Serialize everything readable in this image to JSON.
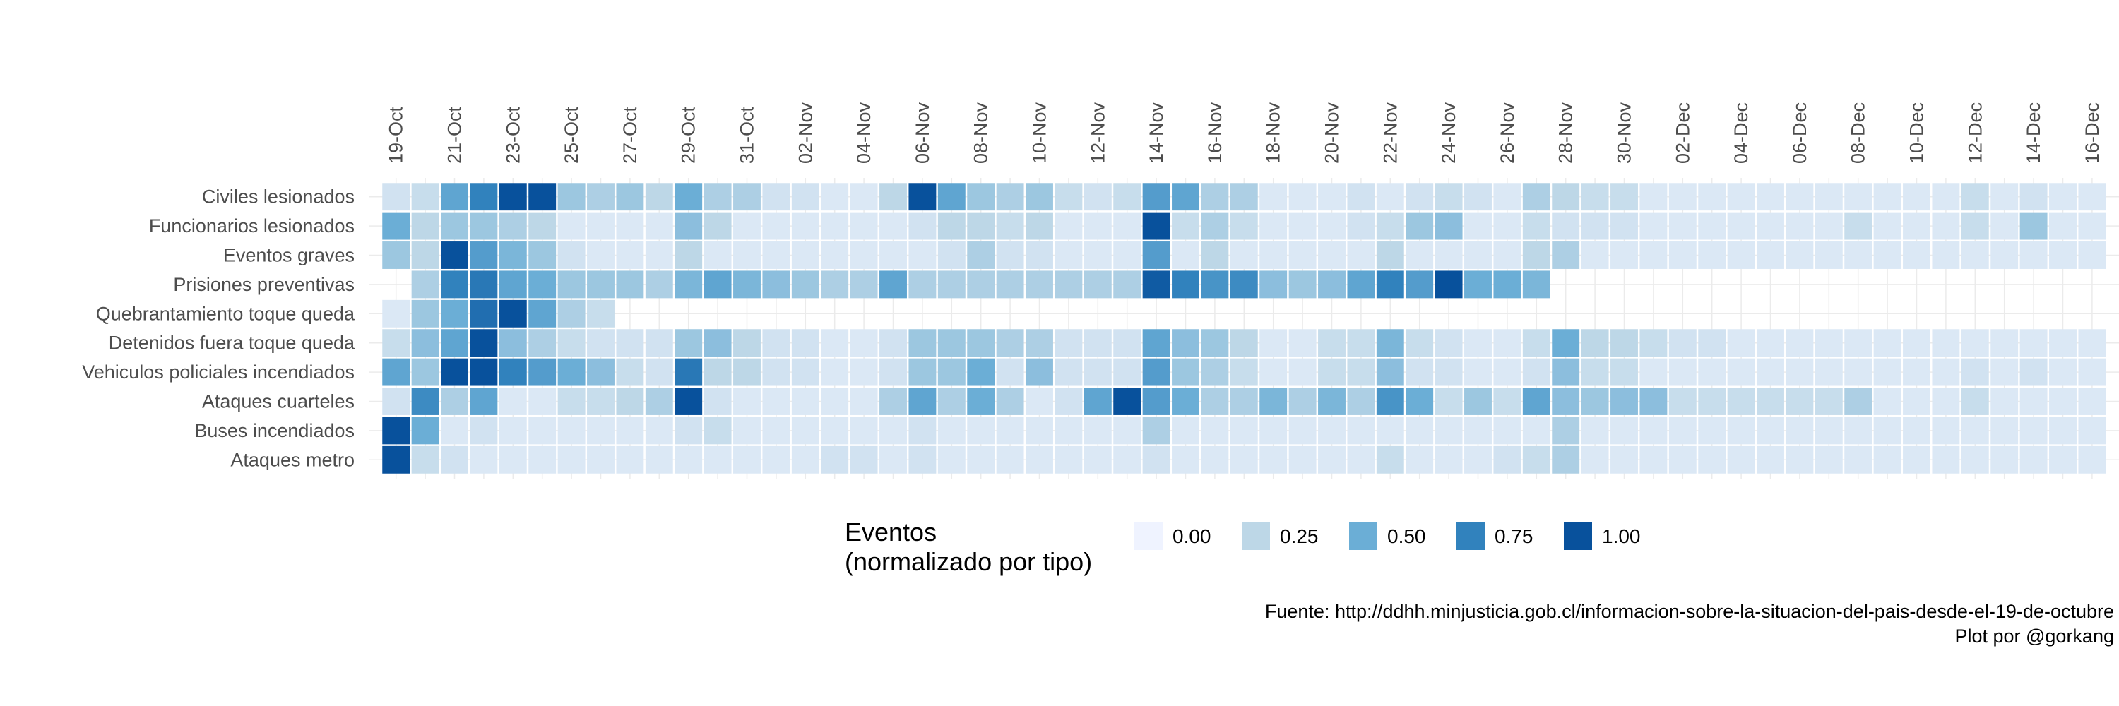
{
  "chart_data": {
    "type": "heatmap",
    "x": [
      "19-Oct",
      "20-Oct",
      "21-Oct",
      "22-Oct",
      "23-Oct",
      "24-Oct",
      "25-Oct",
      "26-Oct",
      "27-Oct",
      "28-Oct",
      "29-Oct",
      "30-Oct",
      "31-Oct",
      "01-Nov",
      "02-Nov",
      "03-Nov",
      "04-Nov",
      "05-Nov",
      "06-Nov",
      "07-Nov",
      "08-Nov",
      "09-Nov",
      "10-Nov",
      "11-Nov",
      "12-Nov",
      "13-Nov",
      "14-Nov",
      "15-Nov",
      "16-Nov",
      "17-Nov",
      "18-Nov",
      "19-Nov",
      "20-Nov",
      "21-Nov",
      "22-Nov",
      "23-Nov",
      "24-Nov",
      "25-Nov",
      "26-Nov",
      "27-Nov",
      "28-Nov",
      "29-Nov",
      "30-Nov",
      "01-Dec",
      "02-Dec",
      "03-Dec",
      "04-Dec",
      "05-Dec",
      "06-Dec",
      "07-Dec",
      "08-Dec",
      "09-Dec",
      "10-Dec",
      "11-Dec",
      "12-Dec",
      "13-Dec",
      "14-Dec",
      "15-Dec",
      "16-Dec"
    ],
    "x_tick_labels": [
      "19-Oct",
      "21-Oct",
      "23-Oct",
      "25-Oct",
      "27-Oct",
      "29-Oct",
      "31-Oct",
      "02-Nov",
      "04-Nov",
      "06-Nov",
      "08-Nov",
      "10-Nov",
      "12-Nov",
      "14-Nov",
      "16-Nov",
      "18-Nov",
      "20-Nov",
      "22-Nov",
      "24-Nov",
      "26-Nov",
      "28-Nov",
      "30-Nov",
      "02-Dec",
      "04-Dec",
      "06-Dec",
      "08-Dec",
      "10-Dec",
      "12-Dec",
      "14-Dec",
      "16-Dec"
    ],
    "categories": [
      "Civiles lesionados",
      "Funcionarios lesionados",
      "Eventos graves",
      "Prisiones preventivas",
      "Quebrantamiento toque queda",
      "Detenidos fuera toque queda",
      "Vehiculos policiales incendiados",
      "Ataques cuarteles",
      "Buses incendiados",
      "Ataques metro"
    ],
    "rows": [
      {
        "name": "Civiles lesionados",
        "values": [
          0.15,
          0.2,
          0.55,
          0.75,
          1.0,
          1.0,
          0.35,
          0.3,
          0.35,
          0.25,
          0.5,
          0.3,
          0.3,
          0.15,
          0.15,
          0.1,
          0.1,
          0.25,
          1.0,
          0.55,
          0.35,
          0.3,
          0.35,
          0.2,
          0.15,
          0.2,
          0.6,
          0.55,
          0.3,
          0.3,
          0.1,
          0.1,
          0.1,
          0.15,
          0.1,
          0.15,
          0.2,
          0.15,
          0.1,
          0.3,
          0.25,
          0.2,
          0.2,
          0.1,
          0.1,
          0.1,
          0.1,
          0.1,
          0.1,
          0.1,
          0.1,
          0.1,
          0.1,
          0.1,
          0.2,
          0.1,
          0.15,
          0.1,
          0.1
        ]
      },
      {
        "name": "Funcionarios lesionados",
        "values": [
          0.5,
          0.25,
          0.35,
          0.35,
          0.3,
          0.25,
          0.1,
          0.1,
          0.1,
          0.1,
          0.4,
          0.25,
          0.1,
          0.1,
          0.1,
          0.1,
          0.1,
          0.1,
          0.15,
          0.25,
          0.25,
          0.2,
          0.25,
          0.1,
          0.1,
          0.1,
          1.0,
          0.2,
          0.3,
          0.2,
          0.1,
          0.1,
          0.1,
          0.15,
          0.2,
          0.35,
          0.4,
          0.1,
          0.1,
          0.2,
          0.15,
          0.15,
          0.15,
          0.1,
          0.1,
          0.1,
          0.1,
          0.1,
          0.1,
          0.1,
          0.2,
          0.1,
          0.1,
          0.1,
          0.2,
          0.1,
          0.35,
          0.1,
          0.1
        ]
      },
      {
        "name": "Eventos graves",
        "values": [
          0.35,
          0.25,
          1.0,
          0.6,
          0.45,
          0.35,
          0.15,
          0.1,
          0.1,
          0.1,
          0.25,
          0.1,
          0.1,
          0.1,
          0.1,
          0.1,
          0.1,
          0.1,
          0.1,
          0.15,
          0.3,
          0.15,
          0.15,
          0.1,
          0.1,
          0.1,
          0.6,
          0.1,
          0.25,
          0.1,
          0.1,
          0.1,
          0.1,
          0.1,
          0.25,
          0.1,
          0.1,
          0.1,
          0.1,
          0.25,
          0.3,
          0.1,
          0.1,
          0.1,
          0.1,
          0.1,
          0.1,
          0.1,
          0.1,
          0.1,
          0.1,
          0.1,
          0.1,
          0.1,
          0.1,
          0.1,
          0.1,
          0.1,
          0.1
        ]
      },
      {
        "name": "Prisiones preventivas",
        "values": [
          null,
          0.3,
          0.75,
          0.8,
          0.55,
          0.5,
          0.35,
          0.35,
          0.35,
          0.3,
          0.45,
          0.55,
          0.45,
          0.4,
          0.35,
          0.3,
          0.3,
          0.55,
          0.3,
          0.3,
          0.3,
          0.3,
          0.3,
          0.3,
          0.3,
          0.3,
          0.95,
          0.75,
          0.65,
          0.7,
          0.4,
          0.35,
          0.4,
          0.55,
          0.75,
          0.6,
          1.0,
          0.5,
          0.5,
          0.45,
          null,
          null,
          null,
          null,
          null,
          null,
          null,
          null,
          null,
          null,
          null,
          null,
          null,
          null,
          null,
          null,
          null,
          null,
          null
        ]
      },
      {
        "name": "Quebrantamiento toque queda",
        "values": [
          0.1,
          0.35,
          0.5,
          0.85,
          1.0,
          0.55,
          0.3,
          0.2,
          null,
          null,
          null,
          null,
          null,
          null,
          null,
          null,
          null,
          null,
          null,
          null,
          null,
          null,
          null,
          null,
          null,
          null,
          null,
          null,
          null,
          null,
          null,
          null,
          null,
          null,
          null,
          null,
          null,
          null,
          null,
          null,
          null,
          null,
          null,
          null,
          null,
          null,
          null,
          null,
          null,
          null,
          null,
          null,
          null,
          null,
          null,
          null,
          null,
          null,
          null
        ]
      },
      {
        "name": "Detenidos fuera toque queda",
        "values": [
          0.2,
          0.4,
          0.55,
          1.0,
          0.4,
          0.3,
          0.2,
          0.15,
          0.15,
          0.15,
          0.35,
          0.4,
          0.25,
          0.15,
          0.15,
          0.1,
          0.1,
          0.15,
          0.35,
          0.35,
          0.35,
          0.3,
          0.3,
          0.15,
          0.15,
          0.15,
          0.55,
          0.4,
          0.35,
          0.25,
          0.1,
          0.1,
          0.2,
          0.2,
          0.45,
          0.2,
          0.15,
          0.1,
          0.1,
          0.2,
          0.5,
          0.25,
          0.25,
          0.2,
          0.15,
          0.15,
          0.1,
          0.1,
          0.1,
          0.1,
          0.1,
          0.1,
          0.1,
          0.1,
          0.1,
          0.1,
          0.1,
          0.1,
          0.1
        ]
      },
      {
        "name": "Vehiculos policiales incendiados",
        "values": [
          0.55,
          0.35,
          1.0,
          1.0,
          0.75,
          0.6,
          0.5,
          0.4,
          0.2,
          0.15,
          0.8,
          0.25,
          0.25,
          0.15,
          0.15,
          0.1,
          0.1,
          0.15,
          0.35,
          0.35,
          0.5,
          0.15,
          0.4,
          0.15,
          0.15,
          0.15,
          0.6,
          0.35,
          0.3,
          0.2,
          0.1,
          0.1,
          0.2,
          0.2,
          0.4,
          0.15,
          0.15,
          0.1,
          0.1,
          0.15,
          0.4,
          0.2,
          0.2,
          0.1,
          0.1,
          0.1,
          0.1,
          0.1,
          0.1,
          0.1,
          0.1,
          0.1,
          0.1,
          0.1,
          0.15,
          0.1,
          0.15,
          0.1,
          0.1
        ]
      },
      {
        "name": "Ataques cuarteles",
        "values": [
          0.15,
          0.7,
          0.3,
          0.55,
          0.1,
          0.1,
          0.2,
          0.2,
          0.25,
          0.3,
          1.0,
          0.15,
          0.1,
          0.1,
          0.1,
          0.1,
          0.1,
          0.3,
          0.55,
          0.3,
          0.5,
          0.3,
          0.1,
          0.15,
          0.55,
          1.0,
          0.6,
          0.5,
          0.3,
          0.3,
          0.45,
          0.3,
          0.45,
          0.3,
          0.65,
          0.5,
          0.2,
          0.35,
          0.2,
          0.55,
          0.4,
          0.35,
          0.4,
          0.4,
          0.2,
          0.2,
          0.2,
          0.2,
          0.2,
          0.2,
          0.3,
          0.1,
          0.1,
          0.1,
          0.2,
          0.1,
          0.1,
          0.1,
          0.1
        ]
      },
      {
        "name": "Buses incendiados",
        "values": [
          1.0,
          0.5,
          0.1,
          0.15,
          0.1,
          0.1,
          0.1,
          0.1,
          0.1,
          0.1,
          0.15,
          0.2,
          0.1,
          0.1,
          0.1,
          0.1,
          0.1,
          0.1,
          0.15,
          0.1,
          0.1,
          0.1,
          0.1,
          0.1,
          0.1,
          0.1,
          0.3,
          0.1,
          0.1,
          0.1,
          0.1,
          0.1,
          0.1,
          0.1,
          0.1,
          0.1,
          0.1,
          0.1,
          0.1,
          0.1,
          0.3,
          0.1,
          0.1,
          0.1,
          0.1,
          0.1,
          0.1,
          0.1,
          0.1,
          0.1,
          0.1,
          0.1,
          0.1,
          0.1,
          0.1,
          0.1,
          0.1,
          0.1,
          0.1
        ]
      },
      {
        "name": "Ataques metro",
        "values": [
          1.0,
          0.2,
          0.15,
          0.1,
          0.1,
          0.1,
          0.1,
          0.1,
          0.1,
          0.1,
          0.1,
          0.1,
          0.1,
          0.1,
          0.1,
          0.15,
          0.15,
          0.1,
          0.15,
          0.1,
          0.1,
          0.1,
          0.1,
          0.1,
          0.1,
          0.1,
          0.15,
          0.1,
          0.1,
          0.1,
          0.1,
          0.1,
          0.1,
          0.1,
          0.2,
          0.1,
          0.1,
          0.1,
          0.15,
          0.2,
          0.3,
          0.1,
          0.1,
          0.1,
          0.1,
          0.1,
          0.1,
          0.1,
          0.1,
          0.1,
          0.1,
          0.1,
          0.1,
          0.1,
          0.1,
          0.1,
          0.1,
          0.1,
          0.1
        ]
      }
    ],
    "value_range": [
      0,
      1
    ],
    "color_scale": [
      "#eff3ff",
      "#bdd7e7",
      "#6baed6",
      "#3182bd",
      "#08519c"
    ],
    "legend": {
      "title_line1": "Eventos",
      "title_line2": "(normalizado por tipo)",
      "breaks": [
        "0.00",
        "0.25",
        "0.50",
        "0.75",
        "1.00"
      ],
      "placement": "bottom"
    },
    "grid": true,
    "caption_line1": "Fuente: http://ddhh.minjusticia.gob.cl/informacion-sobre-la-situacion-del-pais-desde-el-19-de-octubre",
    "caption_line2": "Plot por @gorkang"
  }
}
